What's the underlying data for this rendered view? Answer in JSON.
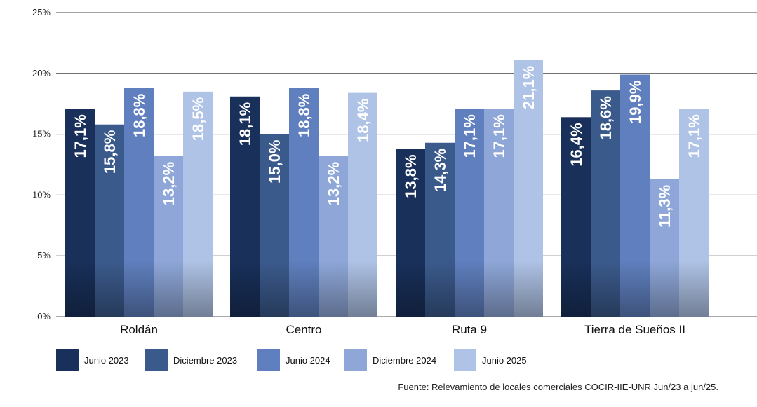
{
  "chart_data": {
    "type": "bar",
    "categories": [
      "Roldán",
      "Centro",
      "Ruta 9",
      "Tierra de Sueños II"
    ],
    "series": [
      {
        "name": "Junio 2023",
        "color": "#19305a",
        "values": [
          17.1,
          18.1,
          13.8,
          16.4
        ],
        "labels": [
          "17,1%",
          "18,1%",
          "13,8%",
          "16,4%"
        ]
      },
      {
        "name": "Diciembre 2023",
        "color": "#3b5a8c",
        "values": [
          15.8,
          15.0,
          14.3,
          18.6
        ],
        "labels": [
          "15,8%",
          "15,0%",
          "14,3%",
          "18,6%"
        ]
      },
      {
        "name": "Junio 2024",
        "color": "#5f7fbe",
        "values": [
          18.8,
          18.8,
          17.1,
          19.9
        ],
        "labels": [
          "18,8%",
          "18,8%",
          "17,1%",
          "19,9%"
        ]
      },
      {
        "name": "Diciembre 2024",
        "color": "#8ea7d8",
        "values": [
          13.2,
          13.2,
          17.1,
          11.3
        ],
        "labels": [
          "13,2%",
          "13,2%",
          "17,1%",
          "11,3%"
        ]
      },
      {
        "name": "Junio 2025",
        "color": "#afc3e6",
        "values": [
          18.5,
          18.4,
          21.1,
          17.1
        ],
        "labels": [
          "18,5%",
          "18,4%",
          "21,1%",
          "17,1%"
        ]
      }
    ],
    "ylim": [
      0,
      25
    ],
    "yticks": [
      "0%",
      "5%",
      "10%",
      "15%",
      "20%",
      "25%"
    ],
    "ytick_values": [
      0,
      5,
      10,
      15,
      20,
      25
    ],
    "grid": true,
    "legend_position": "bottom",
    "source": "Fuente: Relevamiento de locales comerciales COCIR-IIE-UNR Jun/23 a jun/25."
  }
}
